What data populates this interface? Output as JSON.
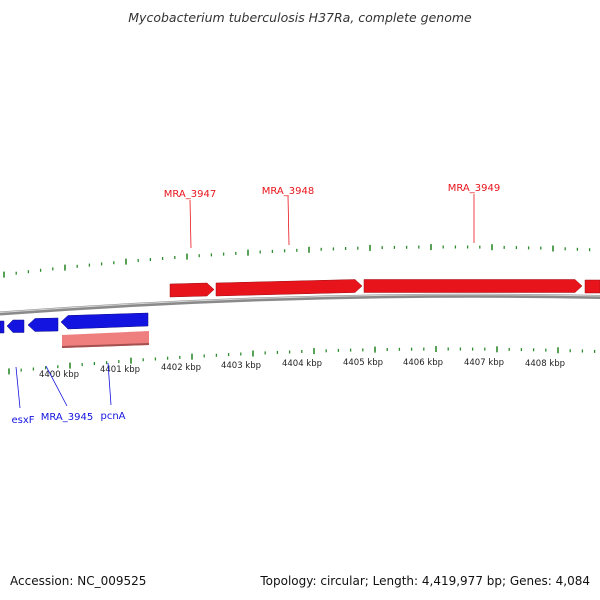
{
  "title": "Mycobacterium tuberculosis H37Ra, complete genome",
  "accession": "Accession: NC_009525",
  "summary": "Topology: circular; Length: 4,419,977 bp; Genes: 4,084",
  "colors": {
    "forward_gene": "#e8141c",
    "reverse_gene": "#1414e0",
    "pseudo_gene": "#ef7f7f",
    "ticks": "#2e8b2e",
    "backbone": "#808080"
  },
  "ticks": [
    "4400 kbp",
    "4401 kbp",
    "4402 kbp",
    "4403 kbp",
    "4404 kbp",
    "4405 kbp",
    "4406 kbp",
    "4407 kbp",
    "4408 kbp"
  ],
  "genes": {
    "forward": [
      {
        "name": "MRA_3947",
        "strand": "+"
      },
      {
        "name": "MRA_3948",
        "strand": "+"
      },
      {
        "name": "MRA_3949",
        "strand": "+"
      }
    ],
    "reverse": [
      {
        "name": "esxF",
        "strand": "-"
      },
      {
        "name": "MRA_3945",
        "strand": "-"
      },
      {
        "name": "pcnA",
        "strand": "-"
      }
    ]
  }
}
